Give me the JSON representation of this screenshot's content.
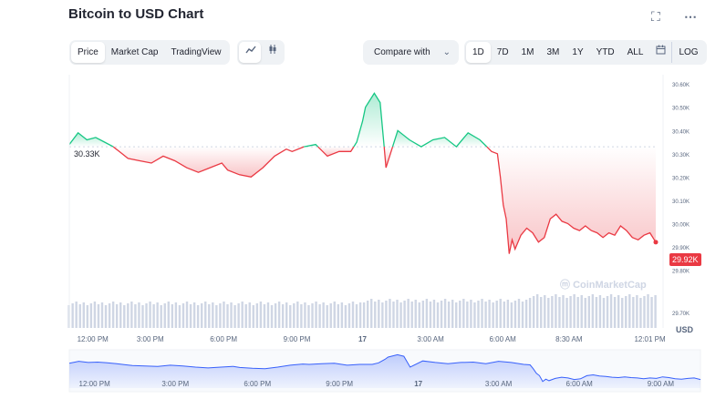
{
  "header": {
    "title": "Bitcoin to USD Chart",
    "fullscreen_icon": "expand-icon",
    "more_icon": "more-icon"
  },
  "toolbar": {
    "view_tabs": [
      "Price",
      "Market Cap",
      "TradingView"
    ],
    "active_view": "Price",
    "chart_type_icons": [
      "line-chart-icon",
      "candlestick-icon"
    ],
    "compare_label": "Compare with",
    "ranges": [
      "1D",
      "7D",
      "1M",
      "3M",
      "1Y",
      "YTD",
      "ALL"
    ],
    "active_range": "1D",
    "calendar_icon": "calendar-icon",
    "log_label": "LOG"
  },
  "chart_data": {
    "type": "line",
    "x_ticks": [
      "12:00 PM",
      "3:00 PM",
      "6:00 PM",
      "9:00 PM",
      "17",
      "3:00 AM",
      "6:00 AM",
      "8:30 AM",
      "12:01 PM"
    ],
    "y_ticks": [
      "30.60K",
      "30.50K",
      "30.40K",
      "30.30K",
      "30.20K",
      "30.10K",
      "30.00K",
      "29.90K",
      "29.80K",
      "29.70K"
    ],
    "ylim": [
      29700,
      30640
    ],
    "y_unit": "USD",
    "reference_label": "30.33K",
    "reference_value": 30330,
    "current_label": "29.92K",
    "current_value": 29920,
    "watermark": "CoinMarketCap",
    "colors": {
      "up": "#16c784",
      "down": "#ea3943",
      "navigator": "#3861fb",
      "volume": "#cfd6e4"
    },
    "series": [
      {
        "x": [
          0,
          0.015,
          0.03,
          0.045,
          0.06,
          0.075,
          0.09,
          0.1,
          0.12,
          0.14,
          0.16,
          0.18,
          0.2,
          0.22,
          0.24,
          0.26,
          0.27,
          0.29,
          0.31,
          0.33,
          0.35,
          0.37,
          0.38,
          0.4,
          0.42,
          0.44,
          0.46,
          0.48,
          0.49,
          0.5,
          0.505,
          0.51,
          0.52,
          0.53,
          0.54,
          0.56,
          0.58,
          0.6,
          0.62,
          0.64,
          0.66,
          0.68,
          0.7,
          0.72,
          0.73,
          0.735,
          0.74,
          0.745,
          0.75,
          0.755,
          0.76,
          0.77,
          0.78,
          0.79,
          0.8,
          0.81,
          0.82,
          0.83,
          0.84,
          0.85,
          0.86,
          0.87,
          0.88,
          0.89,
          0.9,
          0.91,
          0.92,
          0.93,
          0.94,
          0.95,
          0.96,
          0.97,
          0.98,
          0.99,
          1
        ],
        "y": [
          30340,
          30390,
          30360,
          30370,
          30350,
          30330,
          30300,
          30280,
          30270,
          30260,
          30290,
          30270,
          30240,
          30220,
          30240,
          30260,
          30230,
          30210,
          30200,
          30240,
          30290,
          30320,
          30310,
          30330,
          30340,
          30290,
          30310,
          30310,
          30350,
          30440,
          30500,
          30520,
          30560,
          30520,
          30240,
          30400,
          30360,
          30330,
          30360,
          30370,
          30330,
          30390,
          30360,
          30310,
          30300,
          30200,
          30080,
          30020,
          29870,
          29930,
          29890,
          29950,
          29980,
          29960,
          29920,
          29940,
          30020,
          30040,
          30010,
          30000,
          29980,
          29970,
          29990,
          29970,
          29960,
          29940,
          29960,
          29950,
          29990,
          29970,
          29940,
          29930,
          29950,
          29960,
          29920
        ]
      }
    ],
    "navigator": {
      "x_ticks": [
        "12:00 PM",
        "3:00 PM",
        "6:00 PM",
        "9:00 PM",
        "17",
        "3:00 AM",
        "6:00 AM",
        "9:00 AM"
      ]
    }
  }
}
